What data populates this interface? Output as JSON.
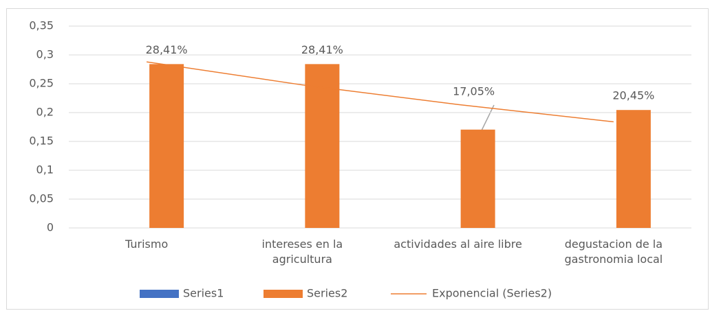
{
  "chart_data": {
    "type": "bar",
    "categories": [
      "Turismo",
      "intereses en la agricultura",
      "actividades al aire libre",
      "degustacion de la gastronomia local"
    ],
    "series": [
      {
        "name": "Series1",
        "color": "#4472c4",
        "values": [
          null,
          null,
          null,
          null
        ]
      },
      {
        "name": "Series2",
        "color": "#ed7d31",
        "values": [
          0.2841,
          0.2841,
          0.1705,
          0.2045
        ],
        "value_labels": [
          "28,41%",
          "28,41%",
          "17,05%",
          "20,45%"
        ]
      }
    ],
    "trendline": {
      "name": "Exponencial (Series2)",
      "color": "#ed7d31",
      "values": [
        0.288,
        0.248,
        0.214,
        0.184
      ]
    },
    "ylim": [
      0,
      0.35
    ],
    "yticks": [
      0,
      {
        "value": 0.05,
        "label": "0,05"
      },
      {
        "value": 0.1,
        "label": "0,1"
      },
      {
        "value": 0.15,
        "label": "0,15"
      },
      {
        "value": 0.2,
        "label": "0,2"
      },
      {
        "value": 0.25,
        "label": "0,25"
      },
      {
        "value": 0.3,
        "label": "0,3"
      },
      {
        "value": 0.35,
        "label": "0,35"
      }
    ],
    "grid": true,
    "legend": "bottom"
  }
}
